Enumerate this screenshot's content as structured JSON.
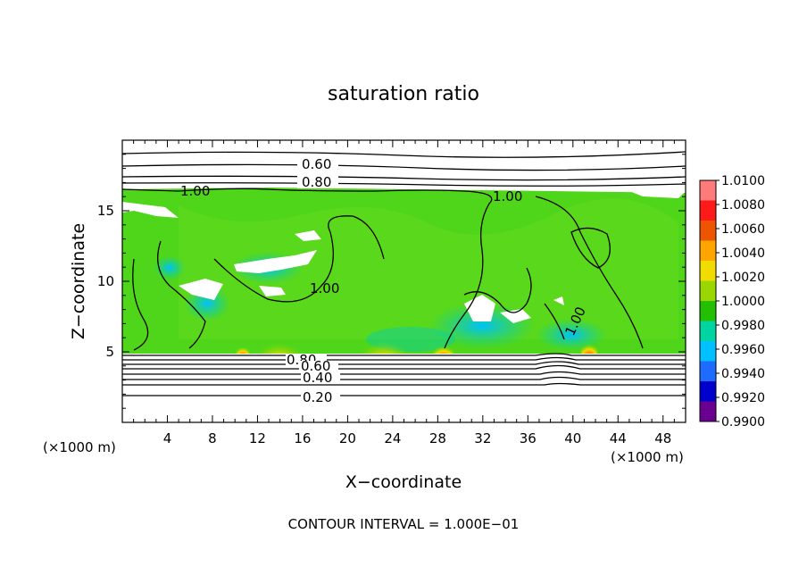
{
  "chart_data": {
    "type": "heatmap",
    "title": "saturation ratio",
    "xlabel": "X−coordinate",
    "ylabel": "Z−coordinate",
    "x_unit_left": "(×1000 m)",
    "x_unit_right": "(×1000 m)",
    "x_ticks": [
      "4",
      "8",
      "12",
      "16",
      "20",
      "24",
      "28",
      "32",
      "36",
      "40",
      "44",
      "48"
    ],
    "y_ticks": [
      "5",
      "10",
      "15"
    ],
    "xlim": [
      0,
      50
    ],
    "ylim": [
      0,
      20
    ],
    "contour_labels": [
      "0.60",
      "0.80",
      "1.00",
      "1.00",
      "1.00",
      "1.00",
      "0.80",
      "0.60",
      "0.40",
      "0.20"
    ],
    "colorbar_labels": [
      "1.0100",
      "1.0080",
      "1.0060",
      "1.0040",
      "1.0020",
      "1.0000",
      "0.9980",
      "0.9960",
      "0.9940",
      "0.9920",
      "0.9900"
    ],
    "colorbar_colors": [
      "#ff7a7a",
      "#ff1a1a",
      "#ee5500",
      "#ffa500",
      "#f0dc00",
      "#9ad600",
      "#22c000",
      "#00d4a0",
      "#00c0ff",
      "#1e6bff",
      "#0000cc",
      "#6a0090"
    ],
    "footer": "CONTOUR INTERVAL = 1.000E−01"
  }
}
